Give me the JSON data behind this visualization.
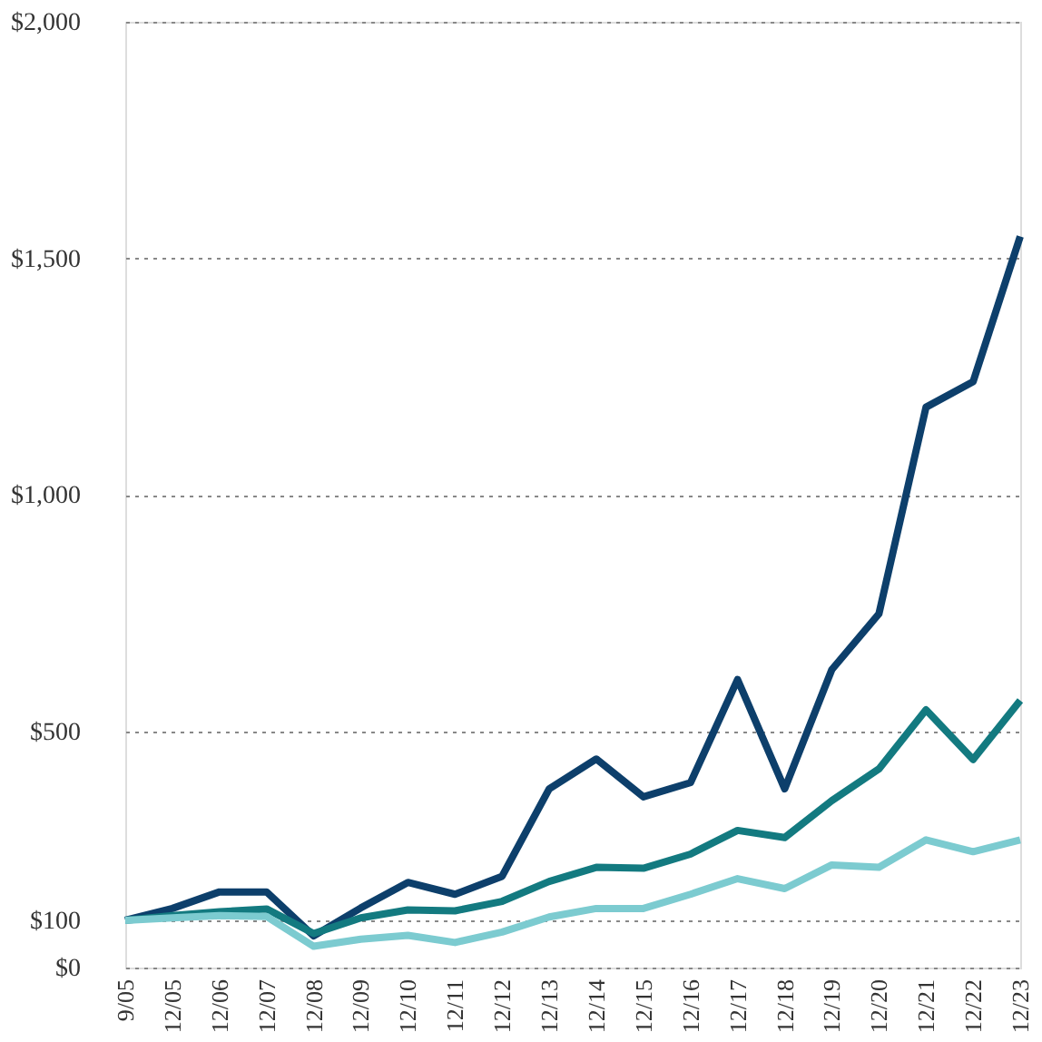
{
  "chart_data": {
    "type": "line",
    "categories": [
      "9/05",
      "12/05",
      "12/06",
      "12/07",
      "12/08",
      "12/09",
      "12/10",
      "12/11",
      "12/12",
      "12/13",
      "12/14",
      "12/15",
      "12/16",
      "12/17",
      "12/18",
      "12/19",
      "12/20",
      "12/21",
      "12/22",
      "12/23"
    ],
    "series": [
      {
        "color": "#0d3f6b",
        "values": [
          100,
          125,
          160,
          160,
          67,
          126,
          180,
          155,
          193,
          378,
          441,
          361,
          391,
          609,
          378,
          630,
          748,
          1185,
          1239,
          1546
        ]
      },
      {
        "color": "#137a80",
        "values": [
          100,
          110,
          118,
          124,
          72,
          105,
          122,
          120,
          140,
          182,
          212,
          210,
          240,
          290,
          275,
          353,
          420,
          545,
          440,
          565
        ]
      },
      {
        "color": "#7ccbd0",
        "values": [
          100,
          105,
          110,
          108,
          45,
          60,
          68,
          53,
          75,
          107,
          125,
          125,
          155,
          188,
          167,
          217,
          212,
          270,
          245,
          270
        ]
      }
    ],
    "ylim": [
      0,
      2000
    ],
    "yticks": [
      {
        "value": 0,
        "label": "$0"
      },
      {
        "value": 100,
        "label": "$100"
      },
      {
        "value": 500,
        "label": "$500"
      },
      {
        "value": 1000,
        "label": "$1,000"
      },
      {
        "value": 1500,
        "label": "$1,500"
      },
      {
        "value": 2000,
        "label": "$2,000"
      }
    ],
    "grid": "y",
    "line_style": "solid",
    "marker": "none",
    "legend": false
  }
}
